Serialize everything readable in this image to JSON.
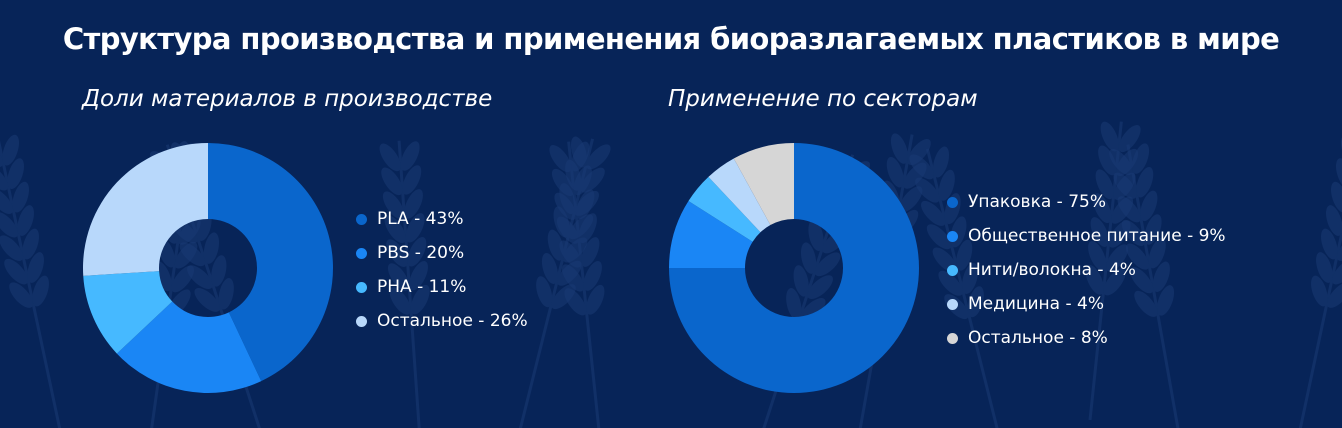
{
  "title": "Структура производства и применения биоразлагаемых пластиков в мире",
  "chart_data": [
    {
      "type": "pie",
      "title": "Доли материалов в производстве",
      "categories": [
        "PLA",
        "PBS",
        "PHA",
        "Остальное"
      ],
      "values": [
        43,
        20,
        11,
        26
      ],
      "legend_labels": [
        "PLA - 43%",
        "PBS - 20%",
        "PHA - 11%",
        "Остальное - 26%"
      ],
      "colors": [
        "#0a66cc",
        "#1a86f5",
        "#46b9ff",
        "#b8d8fb"
      ],
      "legend": "right"
    },
    {
      "type": "pie",
      "title": "Применение по секторам",
      "categories": [
        "Упаковка",
        "Общественное питание",
        "Нити/волокна",
        "Медицина",
        "Остальное"
      ],
      "values": [
        75,
        9,
        4,
        4,
        8
      ],
      "legend_labels": [
        "Упаковка - 75%",
        "Общественное питание - 9%",
        "Нити/волокна - 4%",
        "Медицина - 4%",
        "Остальное - 8%"
      ],
      "colors": [
        "#0a66cc",
        "#1a86f5",
        "#46b9ff",
        "#b8d8fb",
        "#d6d6d6"
      ],
      "legend": "right"
    }
  ]
}
